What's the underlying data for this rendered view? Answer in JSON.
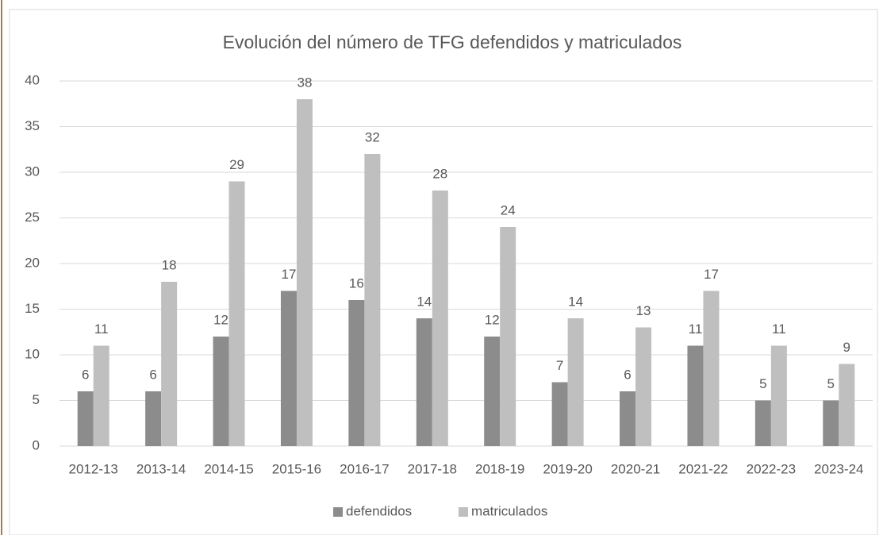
{
  "chart_data": {
    "type": "bar",
    "title": "Evolución del número de TFG defendidos y matriculados",
    "categories": [
      "2012-13",
      "2013-14",
      "2014-15",
      "2015-16",
      "2016-17",
      "2017-18",
      "2018-19",
      "2019-20",
      "2020-21",
      "2021-22",
      "2022-23",
      "2023-24"
    ],
    "series": [
      {
        "name": "defendidos",
        "color": "#8c8c8c",
        "values": [
          6,
          6,
          12,
          17,
          16,
          14,
          12,
          7,
          6,
          11,
          5,
          5
        ]
      },
      {
        "name": "matriculados",
        "color": "#bfbfbf",
        "values": [
          11,
          18,
          29,
          38,
          32,
          28,
          24,
          14,
          13,
          17,
          11,
          9
        ]
      }
    ],
    "ylim": [
      0,
      40
    ],
    "yticks": [
      0,
      5,
      10,
      15,
      20,
      25,
      30,
      35,
      40
    ],
    "grid": true,
    "legend": "bottom"
  }
}
